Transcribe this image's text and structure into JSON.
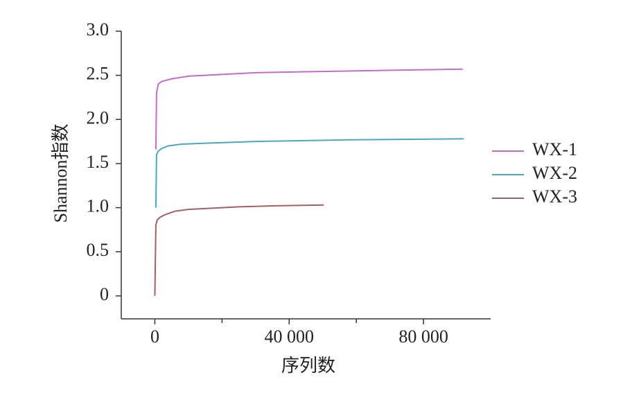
{
  "chart_data": {
    "type": "line",
    "x_label": "序列数",
    "y_label": "Shannon指数",
    "xlim": [
      -10000,
      100000
    ],
    "ylim": [
      -0.26,
      3.0
    ],
    "xticks": [
      0,
      {
        "value": 40000,
        "label": "40 000"
      },
      {
        "value": 80000,
        "label": "80 000"
      }
    ],
    "xminor_ticks": [
      20000,
      60000
    ],
    "yticks": [
      {
        "value": 3.0,
        "label": "3.0"
      },
      2.5,
      {
        "value": 2.0,
        "label": "2.0"
      },
      1.5,
      {
        "value": 1.0,
        "label": "1.0"
      },
      0.5,
      0
    ],
    "legend": "right",
    "series": [
      {
        "name": "WX-1",
        "color": "#c46bcc",
        "x": [
          300,
          500,
          1000,
          2000,
          5000,
          10000,
          20000,
          30000,
          45000,
          60000,
          75000,
          91700
        ],
        "values": [
          1.66,
          2.3,
          2.4,
          2.43,
          2.46,
          2.49,
          2.51,
          2.53,
          2.54,
          2.55,
          2.56,
          2.57
        ]
      },
      {
        "name": "WX-2",
        "color": "#4aa8c0",
        "x": [
          300,
          500,
          1000,
          2000,
          4000,
          8000,
          15000,
          30000,
          45000,
          60000,
          75000,
          92000
        ],
        "values": [
          1.0,
          1.6,
          1.64,
          1.67,
          1.7,
          1.72,
          1.73,
          1.75,
          1.76,
          1.77,
          1.775,
          1.78
        ]
      },
      {
        "name": "WX-3",
        "color": "#a65e64",
        "x": [
          0,
          300,
          700,
          1500,
          3000,
          6000,
          10000,
          15000,
          25000,
          35000,
          50300
        ],
        "values": [
          0,
          0.8,
          0.86,
          0.89,
          0.92,
          0.96,
          0.98,
          0.99,
          1.01,
          1.02,
          1.03
        ]
      }
    ]
  }
}
